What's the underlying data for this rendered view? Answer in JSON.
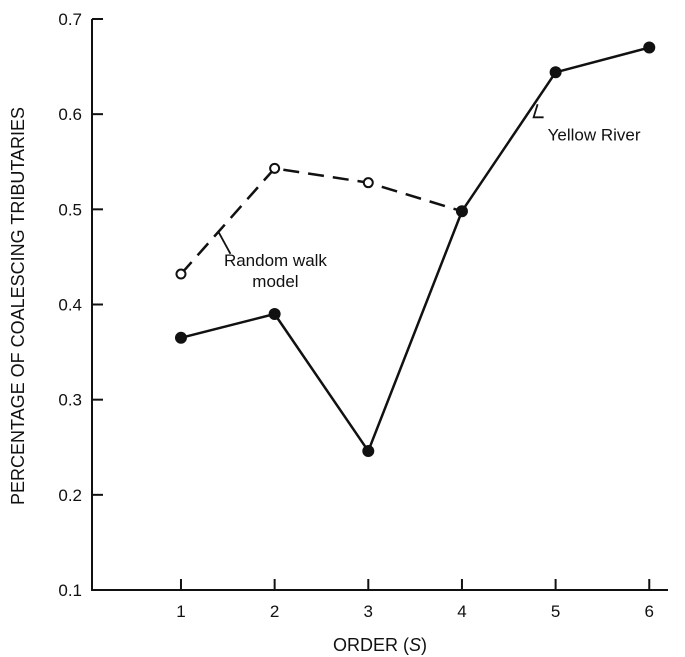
{
  "chart_data": {
    "type": "line",
    "title": "",
    "xlabel": "ORDER (S)",
    "ylabel": "PERCENTAGE OF COALESCING TRIBUTARIES",
    "xlim": [
      0.05,
      6.2
    ],
    "ylim": [
      0.1,
      0.7
    ],
    "x_ticks": [
      "1",
      "2",
      "3",
      "4",
      "5",
      "6"
    ],
    "y_ticks": [
      "0.1",
      "0.2",
      "0.3",
      "0.4",
      "0.5",
      "0.6",
      "0.7"
    ],
    "grid": false,
    "legend": "none",
    "series": [
      {
        "name": "Random walk model",
        "marker": "open-circle",
        "line": "dashed",
        "x": [
          1,
          2,
          3,
          4
        ],
        "y": [
          0.432,
          0.543,
          0.528,
          0.498
        ]
      },
      {
        "name": "Yellow River",
        "marker": "filled-circle",
        "line": "solid",
        "x": [
          1,
          2,
          3,
          4,
          5,
          6
        ],
        "y": [
          0.365,
          0.39,
          0.246,
          0.498,
          0.644,
          0.67
        ]
      }
    ],
    "annotations": [
      {
        "text_lines": [
          "Random walk",
          "model"
        ],
        "series": 0
      },
      {
        "text_lines": [
          "Yellow River"
        ],
        "series": 1
      }
    ]
  }
}
